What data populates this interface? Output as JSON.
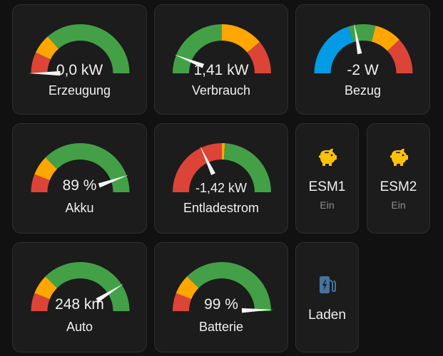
{
  "colors": {
    "green": "#43a047",
    "yellow": "#ffa600",
    "red": "#db4437",
    "blue": "#039be5",
    "icon_orange": "#ffc107",
    "icon_blue": "#44739e",
    "card_bg": "#1c1c1c",
    "page_bg": "#111111",
    "needle": "#f5f5f5"
  },
  "gauges": [
    {
      "id": "erzeugung",
      "value_text": "0,0 kW",
      "name": "Erzeugung",
      "needle": 0.0,
      "segments": [
        {
          "from": 0.0,
          "to": 0.14,
          "color": "red"
        },
        {
          "from": 0.14,
          "to": 0.27,
          "color": "yellow"
        },
        {
          "from": 0.27,
          "to": 1.0,
          "color": "green"
        }
      ]
    },
    {
      "id": "verbrauch",
      "value_text": "1,41 kW",
      "name": "Verbrauch",
      "needle": 0.12,
      "segments": [
        {
          "from": 0.0,
          "to": 0.5,
          "color": "green"
        },
        {
          "from": 0.5,
          "to": 0.78,
          "color": "yellow"
        },
        {
          "from": 0.78,
          "to": 1.0,
          "color": "red"
        }
      ]
    },
    {
      "id": "bezug",
      "value_text": "-2 W",
      "name": "Bezug",
      "needle": 0.44,
      "segments": [
        {
          "from": 0.0,
          "to": 0.4,
          "color": "blue"
        },
        {
          "from": 0.4,
          "to": 0.58,
          "color": "green"
        },
        {
          "from": 0.58,
          "to": 0.76,
          "color": "yellow"
        },
        {
          "from": 0.76,
          "to": 1.0,
          "color": "red"
        }
      ]
    },
    {
      "id": "akku",
      "value_text": "89 %",
      "name": "Akku",
      "needle": 0.89,
      "segments": [
        {
          "from": 0.0,
          "to": 0.12,
          "color": "red"
        },
        {
          "from": 0.12,
          "to": 0.25,
          "color": "yellow"
        },
        {
          "from": 0.25,
          "to": 1.0,
          "color": "green"
        }
      ]
    },
    {
      "id": "entladestrom",
      "value_text": "-1,42 kW",
      "name": "Entladestrom",
      "needle": 0.36,
      "segments": [
        {
          "from": 0.0,
          "to": 0.5,
          "color": "red"
        },
        {
          "from": 0.5,
          "to": 0.52,
          "color": "yellow"
        },
        {
          "from": 0.52,
          "to": 1.0,
          "color": "green"
        }
      ]
    },
    {
      "id": "auto",
      "value_text": "248 km",
      "name": "Auto",
      "needle": 0.82,
      "segments": [
        {
          "from": 0.0,
          "to": 0.12,
          "color": "red"
        },
        {
          "from": 0.12,
          "to": 0.25,
          "color": "yellow"
        },
        {
          "from": 0.25,
          "to": 1.0,
          "color": "green"
        }
      ]
    },
    {
      "id": "batterie",
      "value_text": "99 %",
      "name": "Batterie",
      "needle": 0.99,
      "segments": [
        {
          "from": 0.0,
          "to": 0.12,
          "color": "red"
        },
        {
          "from": 0.12,
          "to": 0.25,
          "color": "yellow"
        },
        {
          "from": 0.25,
          "to": 1.0,
          "color": "green"
        }
      ]
    }
  ],
  "buttons": [
    {
      "id": "esm1",
      "name": "ESM1",
      "state": "Ein",
      "icon": "piggy-bank-icon",
      "icon_color": "icon_orange"
    },
    {
      "id": "esm2",
      "name": "ESM2",
      "state": "Ein",
      "icon": "piggy-bank-icon",
      "icon_color": "icon_orange"
    },
    {
      "id": "laden",
      "name": "Laden",
      "state": "",
      "icon": "ev-station-icon",
      "icon_color": "icon_blue"
    }
  ]
}
